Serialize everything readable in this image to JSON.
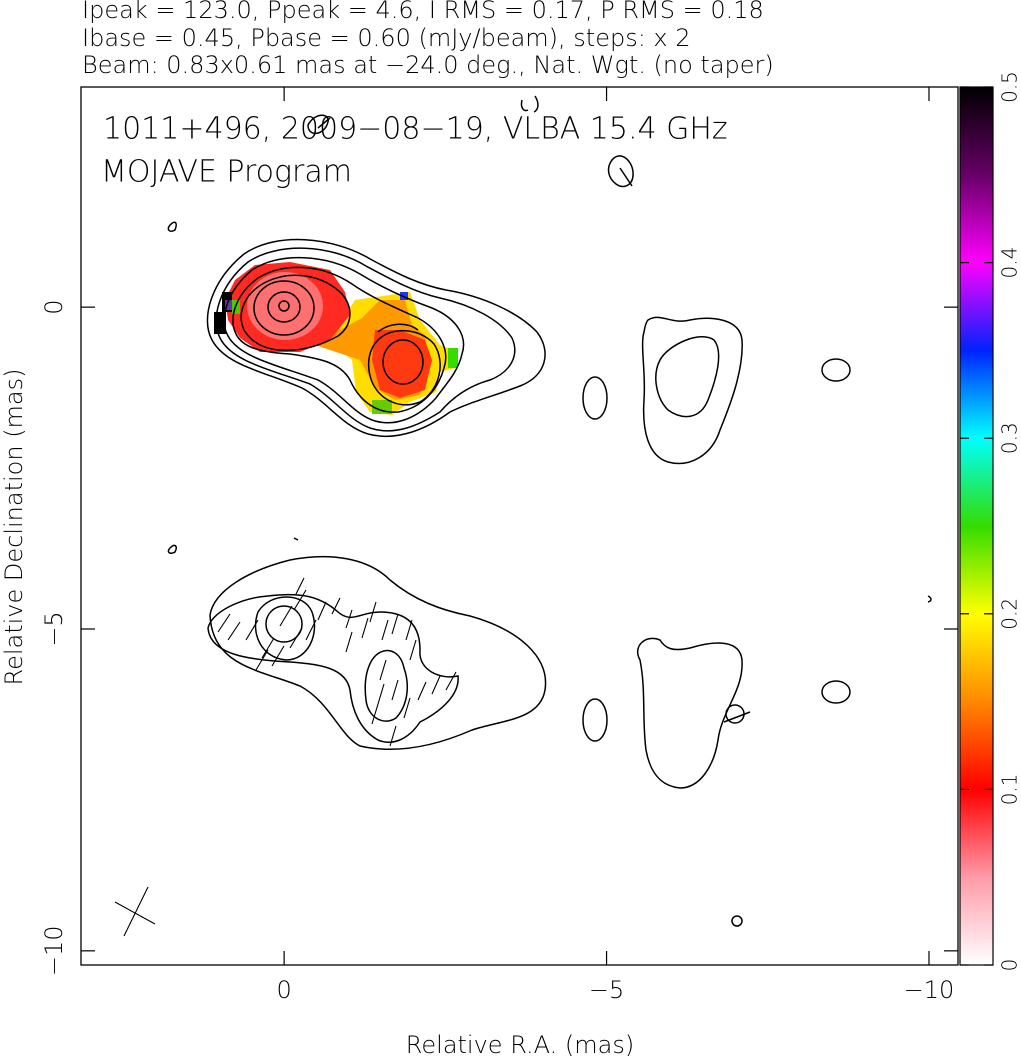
{
  "chart_data": {
    "type": "contour",
    "title": [
      "Ipeak = 123.0, Ppeak = 4.6, I RMS = 0.17, P RMS = 0.18",
      "Ibase = 0.45, Pbase = 0.60 (mJy/beam), steps: x 2",
      "Beam: 0.83x0.61 mas at −24.0 deg., Nat. Wgt. (no taper)"
    ],
    "annotations": [
      "1011+496, 2009−08−19, VLBA 15.4 GHz",
      "MOJAVE Program"
    ],
    "xlabel": "Relative R.A. (mas)",
    "ylabel": "Relative Declination (mas)",
    "xlim": [
      3.15,
      -10.45
    ],
    "ylim": [
      -10.22,
      3.42
    ],
    "xticks": [
      0,
      {
        "value": -5,
        "label": "−5"
      },
      {
        "value": -10,
        "label": "−10"
      }
    ],
    "yticks": [
      0,
      {
        "value": -5,
        "label": "−5"
      },
      {
        "value": -10,
        "label": "−10"
      }
    ],
    "colorbar": {
      "lim": [
        0,
        0.5
      ],
      "ticks": [
        0,
        0.1,
        0.2,
        0.3,
        0.4,
        0.5
      ]
    }
  }
}
